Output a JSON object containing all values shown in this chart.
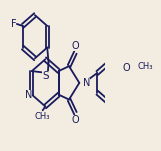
{
  "background_color": "#f2ede0",
  "line_color": "#1a1a5e",
  "line_width": 1.3,
  "font_size": 6.5,
  "figsize": [
    1.61,
    1.51
  ],
  "dpi": 100,
  "xlim": [
    0,
    161
  ],
  "ylim": [
    0,
    151
  ]
}
